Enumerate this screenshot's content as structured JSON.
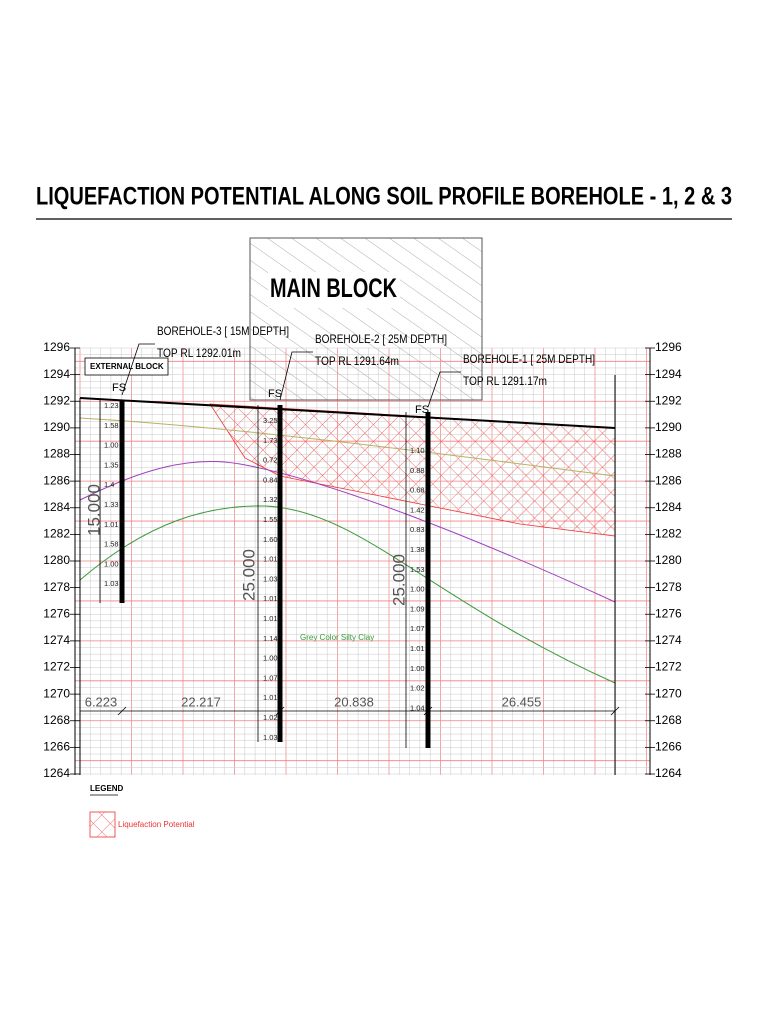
{
  "title": "LIQUEFACTION POTENTIAL ALONG SOIL PROFILE  BOREHOLE - 1, 2 & 3",
  "main_block": "MAIN BLOCK",
  "external_block": "EXTERNAL BLOCK",
  "elevation_ticks": [
    1296,
    1294,
    1292,
    1290,
    1288,
    1286,
    1284,
    1282,
    1280,
    1278,
    1276,
    1274,
    1272,
    1270,
    1268,
    1266,
    1264
  ],
  "boreholes": [
    {
      "name": "BOREHOLE-3 [ 15M DEPTH]",
      "top_rl": "TOP RL 1292.01m",
      "fs_label": "FS",
      "depth": "15.000",
      "fs_values": [
        "1.23",
        "1.58",
        "1.00",
        "1.35",
        "1.4",
        "1.33",
        "1.01",
        "1.58",
        "1.00",
        "1.03"
      ]
    },
    {
      "name": "BOREHOLE-2 [ 25M DEPTH]",
      "top_rl": "TOP RL 1291.64m",
      "fs_label": "FS",
      "depth": "25.000",
      "fs_values": [
        "3.25",
        "1.73",
        "0.72",
        "0.84",
        "1.32",
        "1.55",
        "1.60",
        "1.01",
        "1.03",
        "1.01",
        "1.01",
        "1.14",
        "1.00",
        "1.07",
        "1.01",
        "1.02",
        "1.03"
      ]
    },
    {
      "name": "BOREHOLE-1 [ 25M DEPTH]",
      "top_rl": "TOP RL 1291.17m",
      "fs_label": "FS",
      "depth": "25.000",
      "fs_values": [
        "1.10",
        "0.88",
        "0.68",
        "1.42",
        "0.83",
        "1.38",
        "1.53",
        "1.00",
        "1.09",
        "1.07",
        "1.01",
        "1.00",
        "1.02",
        "1.04"
      ]
    }
  ],
  "spacings": [
    "6.223",
    "22.217",
    "20.838",
    "26.455"
  ],
  "soil_label": "Grey Color Silty Clay",
  "legend": {
    "title": "LEGEND",
    "items": [
      "Liquefaction Potential"
    ]
  }
}
